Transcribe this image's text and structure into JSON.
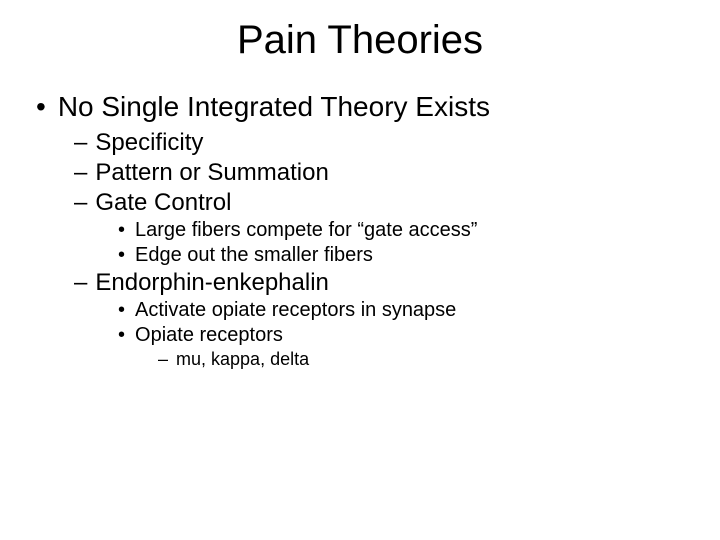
{
  "colors": {
    "background": "#ffffff",
    "text": "#000000"
  },
  "typography": {
    "family": "Arial",
    "title_size_pt": 40,
    "l1_size_pt": 28,
    "l2_size_pt": 24,
    "l3_size_pt": 20,
    "l4_size_pt": 18
  },
  "bullets": {
    "l1": "•",
    "l2": "–",
    "l3": "•",
    "l4": "–"
  },
  "title": "Pain Theories",
  "content": {
    "p1": "No Single Integrated Theory Exists",
    "s1": "Specificity",
    "s2": "Pattern or Summation",
    "s3": "Gate Control",
    "s3a": "Large fibers compete for “gate access”",
    "s3b": "Edge out the smaller fibers",
    "s4": "Endorphin-enkephalin",
    "s4a": "Activate opiate receptors in synapse",
    "s4b": "Opiate receptors",
    "s4b1": "mu, kappa, delta"
  }
}
